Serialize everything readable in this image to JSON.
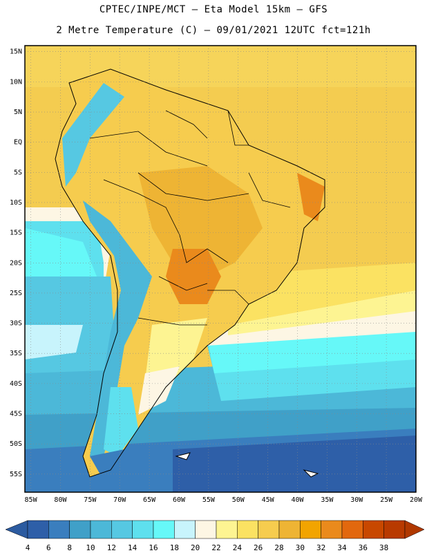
{
  "header": {
    "line1": "CPTEC/INPE/MCT –  Eta Model 15km – GFS",
    "line2": "2 Metre Temperature (C) – 09/01/2021 12UTC fct=121h"
  },
  "map": {
    "lat_labels": [
      "15N",
      "10N",
      "5N",
      "EQ",
      "5S",
      "10S",
      "15S",
      "20S",
      "25S",
      "30S",
      "35S",
      "40S",
      "45S",
      "50S",
      "55S"
    ],
    "lon_labels": [
      "85W",
      "80W",
      "75W",
      "70W",
      "65W",
      "60W",
      "55W",
      "50W",
      "45W",
      "40W",
      "35W",
      "30W",
      "25W",
      "20W"
    ],
    "lat_range": [
      16,
      -58
    ],
    "lon_range": [
      -86,
      -20
    ],
    "gridlines": true
  },
  "colorbar": {
    "levels": [
      "4",
      "6",
      "8",
      "10",
      "12",
      "14",
      "16",
      "18",
      "20",
      "22",
      "24",
      "26",
      "28",
      "30",
      "32",
      "34",
      "36",
      "38"
    ],
    "colors": [
      "#2e5fa8",
      "#3a7ebe",
      "#40a0c8",
      "#4cb8d8",
      "#56c8e2",
      "#5ee0ee",
      "#66f8f8",
      "#c8f4fc",
      "#fdf6e4",
      "#fdf492",
      "#fbe262",
      "#f6cc4e",
      "#eeb434",
      "#f2a400",
      "#ea8a1c",
      "#e2680e",
      "#c84800",
      "#b83a00"
    ],
    "below_color": "#2c5ba0",
    "above_color": "#b03800"
  }
}
